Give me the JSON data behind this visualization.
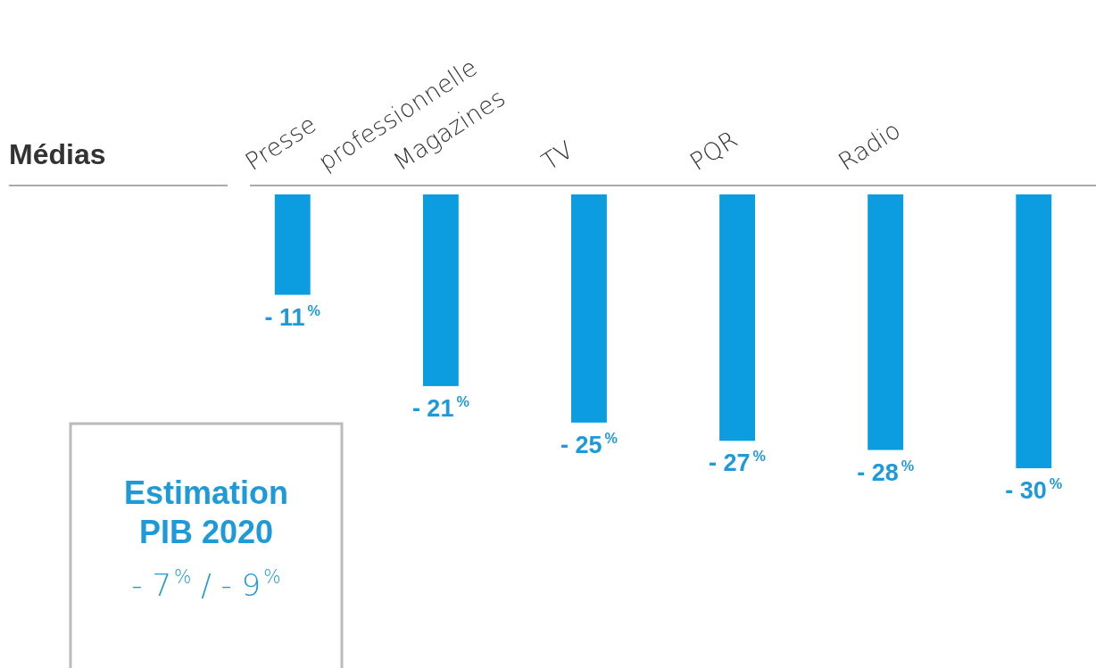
{
  "chart_data": {
    "type": "bar",
    "title": "Médias",
    "categories": [
      "Presse professionnelle",
      "Magazines",
      "TV",
      "PQR",
      "Radio",
      null
    ],
    "values": [
      -11,
      -21,
      -25,
      -27,
      -28,
      -30
    ],
    "color": "#0b9de0",
    "value_labels": [
      "- 11$^{%}$",
      "- 21$^{%}$",
      "- 25$^{%}$",
      "- 27$^{%}$",
      "- 28$^{%}$",
      "- 30$^{%}$"
    ],
    "annotations": [
      "Estimation PIB 2020",
      "- 7$^{%}$ / - 9$^{%}$"
    ]
  }
}
